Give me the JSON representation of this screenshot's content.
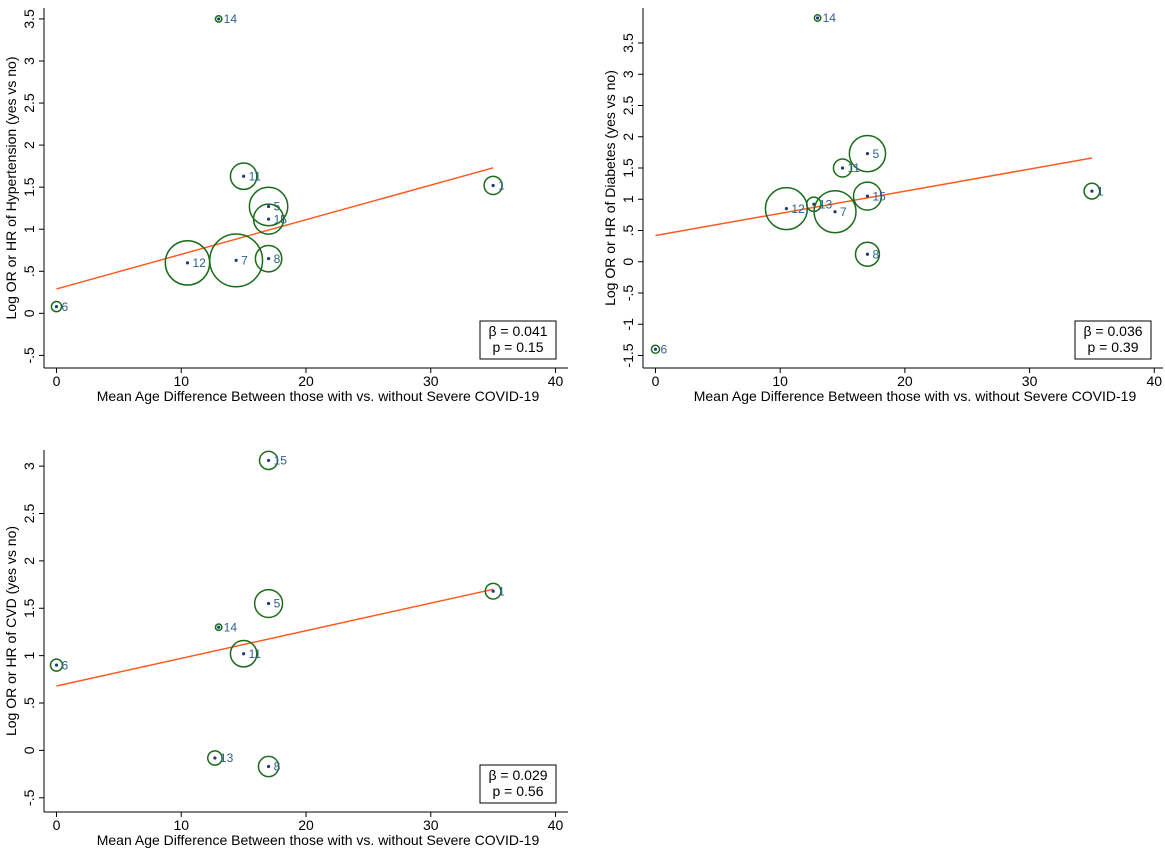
{
  "chart_data": [
    {
      "type": "scatter",
      "y_label": "Log OR or HR of Hypertension (yes vs no)",
      "x_label": "Mean Age Difference Between those with vs. without Severe COVID-19",
      "x": [
        13,
        15,
        17,
        17,
        35,
        10.5,
        14.4,
        17,
        0
      ],
      "y": [
        3.5,
        1.63,
        1.27,
        1.12,
        1.52,
        0.6,
        0.63,
        0.65,
        0.08
      ],
      "sizes": [
        1,
        17,
        36,
        22,
        8,
        48,
        68,
        17,
        2.5
      ],
      "labels": [
        "14",
        "11",
        "5",
        "15",
        "1",
        "12",
        "7",
        "8",
        "6"
      ],
      "fit": {
        "x": [
          0,
          35
        ],
        "y": [
          0.29,
          1.73
        ]
      },
      "annotations": [
        "β = 0.041",
        "p = 0.15"
      ],
      "xlim": [
        -1,
        41
      ],
      "xticks": [
        0,
        10,
        20,
        30,
        40
      ],
      "ylim": [
        -0.65,
        3.63
      ],
      "yticks": [
        {
          "value": -0.5,
          "label": "-.5"
        },
        0,
        {
          "value": 0.5,
          "label": ".5"
        },
        1,
        1.5,
        2,
        2.5,
        3,
        3.5
      ],
      "color": "#1a6b1a",
      "fit_color": "#ff5a1f"
    },
    {
      "type": "scatter",
      "y_label": "Log OR or HR of Diabetes (yes vs no)",
      "x_label": "Mean Age Difference Between those with vs. without Severe COVID-19",
      "x": [
        13,
        17,
        15,
        17,
        10.5,
        12.7,
        14.4,
        17,
        0,
        35
      ],
      "y": [
        3.9,
        1.73,
        1.5,
        1.05,
        0.85,
        0.92,
        0.8,
        0.12,
        -1.4,
        1.13
      ],
      "sizes": [
        1,
        32,
        8,
        19,
        43,
        5,
        43,
        14,
        1.6,
        6
      ],
      "labels": [
        "14",
        "5",
        "11",
        "15",
        "12",
        "13",
        "7",
        "8",
        "6",
        "1"
      ],
      "fit": {
        "x": [
          0,
          35
        ],
        "y": [
          0.42,
          1.66
        ]
      },
      "annotations": [
        "β = 0.036",
        "p = 0.39"
      ],
      "xlim": [
        -1,
        40.7
      ],
      "xticks": [
        0,
        10,
        20,
        30,
        40
      ],
      "ylim": [
        -1.7,
        4.06
      ],
      "yticks": [
        -1.5,
        -1,
        {
          "value": -0.5,
          "label": "-.5"
        },
        0,
        {
          "value": 0.5,
          "label": ".5"
        },
        1,
        1.5,
        2,
        2.5,
        3,
        3.5
      ],
      "color": "#1a6b1a",
      "fit_color": "#ff5a1f"
    },
    {
      "type": "scatter",
      "y_label": "Log OR or HR of CVD (yes vs no)",
      "x_label": "Mean Age Difference Between those with vs. without Severe COVID-19",
      "x": [
        17,
        35,
        17,
        13,
        15,
        0,
        12.7,
        17
      ],
      "y": [
        3.06,
        1.68,
        1.55,
        1.3,
        1.02,
        0.9,
        -0.08,
        -0.17
      ],
      "sizes": [
        8,
        6,
        19,
        1,
        17,
        3.5,
        5,
        10
      ],
      "labels": [
        "15",
        "1",
        "5",
        "14",
        "11",
        "6",
        "13",
        "8"
      ],
      "fit": {
        "x": [
          0,
          35
        ],
        "y": [
          0.68,
          1.7
        ]
      },
      "annotations": [
        "β = 0.029",
        "p = 0.56"
      ],
      "xlim": [
        -1,
        41
      ],
      "xticks": [
        0,
        10,
        20,
        30,
        40
      ],
      "ylim": [
        -0.65,
        3.17
      ],
      "yticks": [
        {
          "value": -0.5,
          "label": "-.5"
        },
        0,
        {
          "value": 0.5,
          "label": ".5"
        },
        1,
        1.5,
        2,
        2.5,
        3
      ],
      "color": "#1a6b1a",
      "fit_color": "#ff5a1f"
    }
  ]
}
